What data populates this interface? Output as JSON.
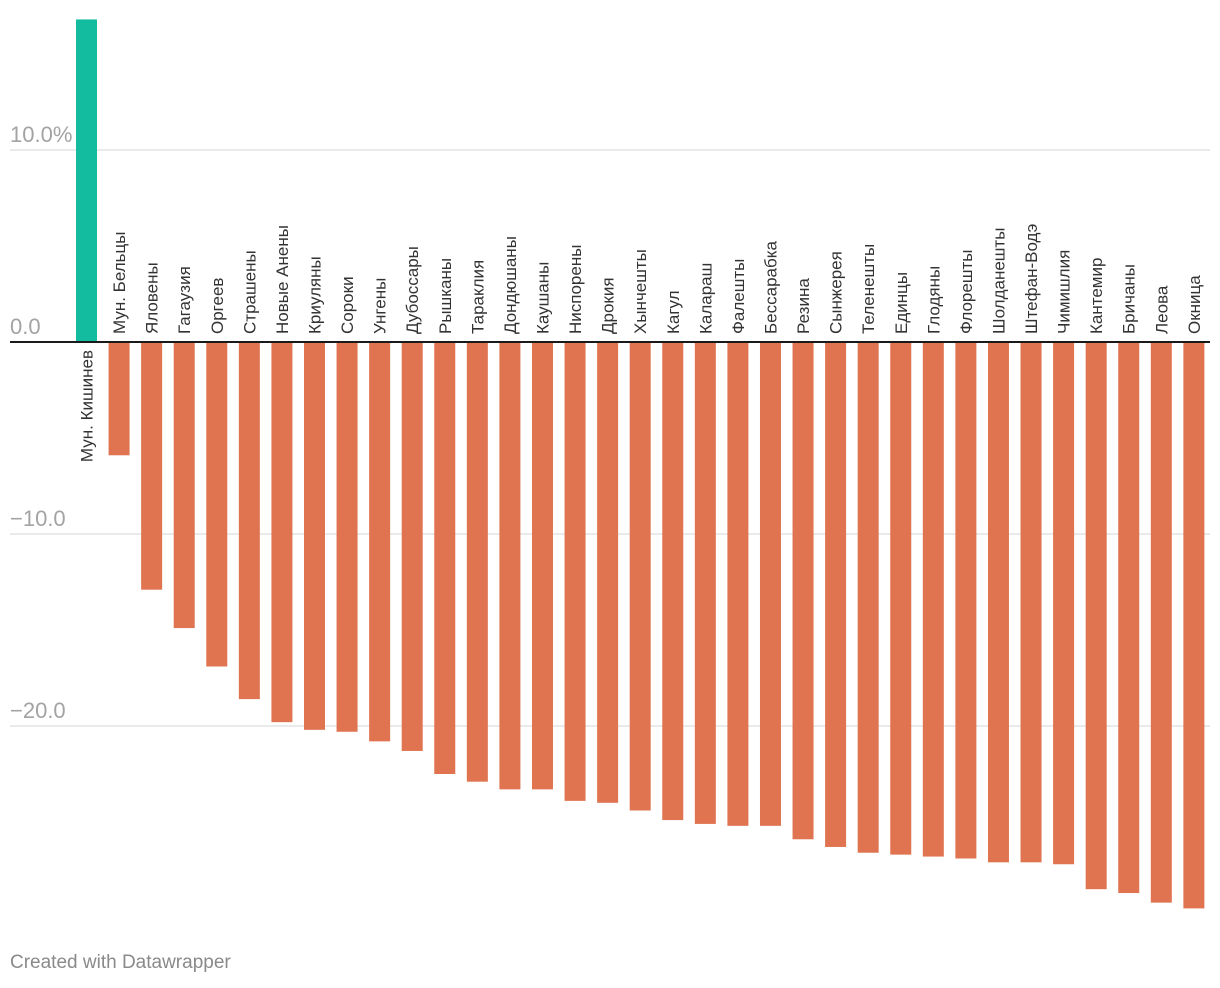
{
  "chart_data": {
    "type": "bar",
    "title": "",
    "xlabel": "",
    "ylabel": "",
    "ylim": [
      -29.6,
      16.8
    ],
    "yticks": [
      {
        "value": 10,
        "label": "10.0%"
      },
      {
        "value": 0,
        "label": "0.0"
      },
      {
        "value": -10,
        "label": "−10.0"
      },
      {
        "value": -20,
        "label": "−20.0"
      }
    ],
    "grid": true,
    "colors": {
      "positive": "#13bc9e",
      "negative": "#e07350",
      "grid": "#e3e3e3",
      "baseline": "#1a1a1a"
    },
    "categories": [
      "Мун. Кишинев",
      "Мун. Бельцы",
      "Яловены",
      "Гагаузия",
      "Оргеев",
      "Страшены",
      "Новые Анены",
      "Криуляны",
      "Сороки",
      "Унгены",
      "Дубоссары",
      "Рышканы",
      "Тараклия",
      "Дондюшаны",
      "Каушаны",
      "Ниспорены",
      "Дрокия",
      "Хынчешты",
      "Кагул",
      "Калараш",
      "Фалешты",
      "Бессарабка",
      "Резина",
      "Сынжерея",
      "Теленешты",
      "Единцы",
      "Глодяны",
      "Флорешты",
      "Шолданешты",
      "Штефан-Водэ",
      "Чимишлия",
      "Кантемир",
      "Бричаны",
      "Леова",
      "Окница"
    ],
    "values": [
      16.8,
      -5.9,
      -12.9,
      -14.9,
      -16.9,
      -18.6,
      -19.8,
      -20.2,
      -20.3,
      -20.8,
      -21.3,
      -22.5,
      -22.9,
      -23.3,
      -23.3,
      -23.9,
      -24.0,
      -24.4,
      -24.9,
      -25.1,
      -25.2,
      -25.2,
      -25.9,
      -26.3,
      -26.6,
      -26.7,
      -26.8,
      -26.9,
      -27.1,
      -27.1,
      -27.2,
      -28.5,
      -28.7,
      -29.2,
      -29.5
    ]
  },
  "footer": {
    "credit": "Created with Datawrapper"
  }
}
